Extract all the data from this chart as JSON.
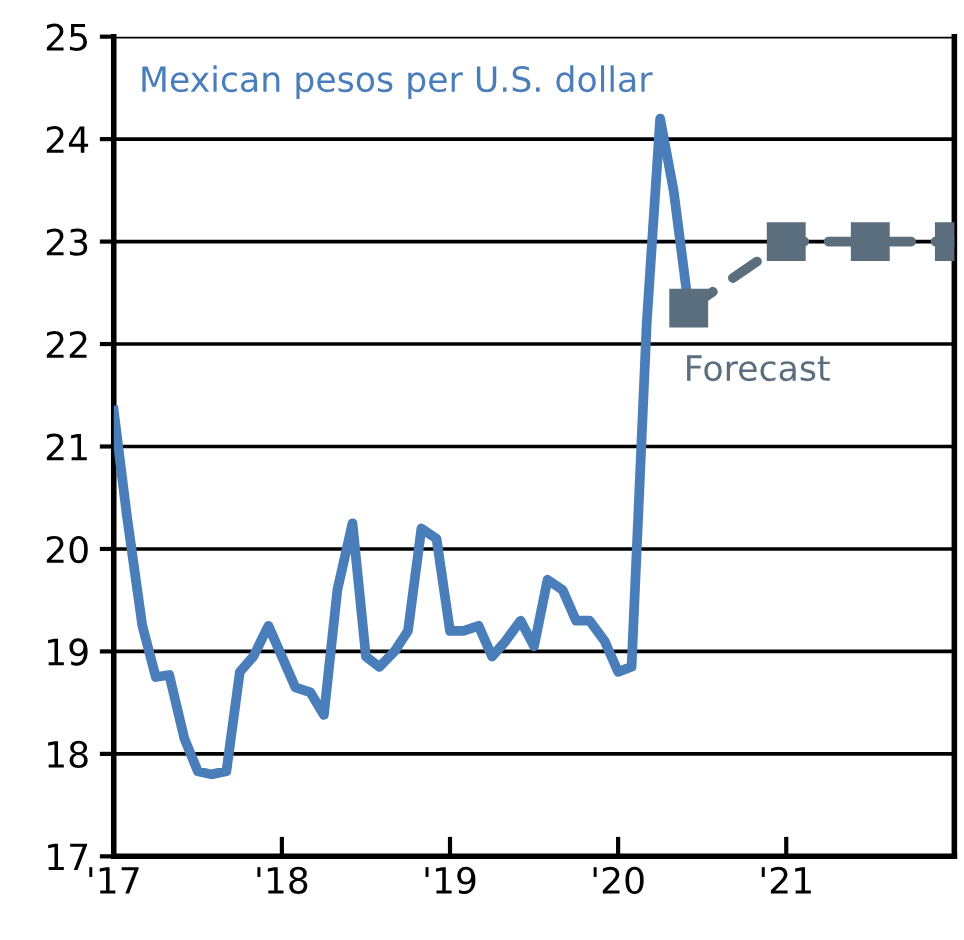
{
  "chart_data": {
    "type": "line",
    "series": [
      {
        "name": "Mexican pesos per U.S. dollar",
        "color": "#4a7ebb",
        "line_style": "solid",
        "marker": "none",
        "x": [
          2017.0,
          2017.08,
          2017.17,
          2017.25,
          2017.33,
          2017.42,
          2017.5,
          2017.58,
          2017.67,
          2017.75,
          2017.83,
          2017.92,
          2018.0,
          2018.08,
          2018.17,
          2018.25,
          2018.33,
          2018.42,
          2018.5,
          2018.58,
          2018.67,
          2018.75,
          2018.83,
          2018.92,
          2019.0,
          2019.08,
          2019.17,
          2019.25,
          2019.33,
          2019.42,
          2019.5,
          2019.58,
          2019.67,
          2019.75,
          2019.83,
          2019.92,
          2020.0,
          2020.08,
          2020.17,
          2020.25,
          2020.33,
          2020.42
        ],
        "values": [
          21.35,
          20.3,
          19.25,
          18.75,
          18.77,
          18.15,
          17.83,
          17.8,
          17.83,
          18.8,
          18.95,
          19.25,
          18.95,
          18.65,
          18.6,
          18.38,
          19.6,
          20.25,
          18.95,
          18.85,
          19.0,
          19.2,
          20.2,
          20.1,
          19.2,
          19.2,
          19.25,
          18.95,
          19.1,
          19.3,
          19.05,
          19.7,
          19.6,
          19.3,
          19.3,
          19.1,
          18.8,
          18.85,
          22.2,
          24.2,
          23.5,
          22.35
        ]
      },
      {
        "name": "Forecast",
        "color": "#5b6e7d",
        "line_style": "dashed",
        "marker": "square",
        "x": [
          2020.42,
          2021.0,
          2021.5,
          2022.0
        ],
        "values": [
          22.35,
          23.0,
          23.0,
          23.0
        ]
      }
    ],
    "xlim": [
      2017,
      2022
    ],
    "xticks": [
      {
        "value": 2017,
        "label": "'17"
      },
      {
        "value": 2018,
        "label": "'18"
      },
      {
        "value": 2019,
        "label": "'19"
      },
      {
        "value": 2020,
        "label": "'20"
      },
      {
        "value": 2021,
        "label": "'21"
      }
    ],
    "ylim": [
      17,
      25
    ],
    "yticks": [
      17,
      18,
      19,
      20,
      21,
      22,
      23,
      24,
      25
    ],
    "grid": "y",
    "legend": false
  }
}
